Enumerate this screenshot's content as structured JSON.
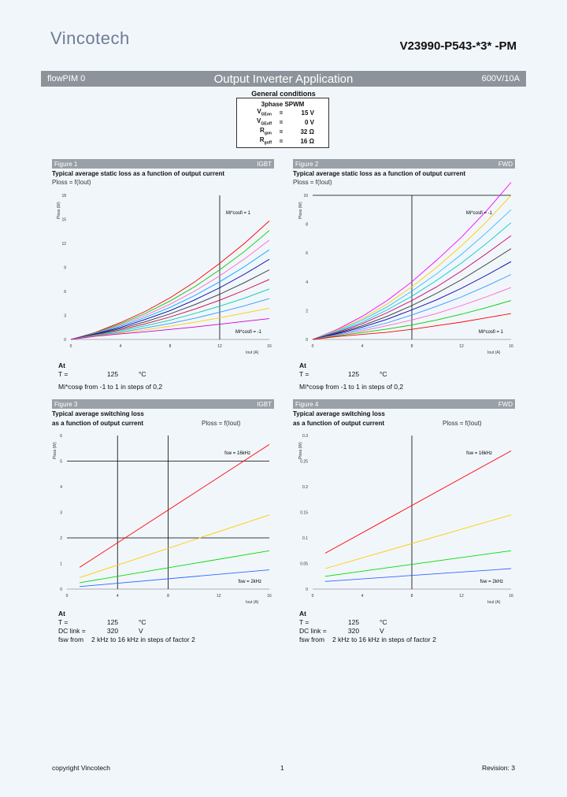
{
  "header": {
    "logo_text": "Vincotech",
    "part_number": "V23990-P543-*3* -PM"
  },
  "titlebar": {
    "left": "flowPIM 0",
    "center": "Output Inverter Application",
    "right": "600V/10A"
  },
  "general_conditions": {
    "title": "General conditions",
    "mode": "3phase SPWM",
    "rows": [
      {
        "name": "V",
        "sub": "GEon",
        "eq": "=",
        "value": "15 V"
      },
      {
        "name": "V",
        "sub": "GEoff",
        "eq": "=",
        "value": "0 V"
      },
      {
        "name": "R",
        "sub": "gon",
        "eq": "=",
        "value": "32 Ω"
      },
      {
        "name": "R",
        "sub": "goff",
        "eq": "=",
        "value": "16 Ω"
      }
    ]
  },
  "figures": [
    {
      "label": "Figure 1",
      "tag": "IGBT",
      "subtitle1": "Typical average static loss as a function of output current",
      "subtitle2": "",
      "formula": "Ploss = f(Iout)",
      "annot_top": "Mi*cosfi = 1",
      "annot_bottom": "Mi*cosfi = -1",
      "ylabel": "Ploss (W)",
      "xlabel": "Iout (A)",
      "cond_title": "At",
      "cond_rows": [
        {
          "a": "T =",
          "b": "125",
          "c": "°C"
        }
      ],
      "cond_note": "Mi*cosφ from -1 to 1 in steps of 0,2"
    },
    {
      "label": "Figure 2",
      "tag": "FWD",
      "subtitle1": "Typical average static loss as a function of output current",
      "subtitle2": "",
      "formula": "Ploss = f(Iout)",
      "annot_top": "Mi*cosfi = -1",
      "annot_bottom": "Mi*cosfi = 1",
      "ylabel": "Ploss (W)",
      "xlabel": "Iout (A)",
      "cond_title": "At",
      "cond_rows": [
        {
          "a": "T =",
          "b": "125",
          "c": "°C"
        }
      ],
      "cond_note": "Mi*cosφ from -1 to 1 in steps of 0,2"
    },
    {
      "label": "Figure 3",
      "tag": "IGBT",
      "subtitle1": "Typical average switching loss",
      "subtitle2": "as a function of output current",
      "formula": "Ploss = f(Iout)",
      "annot_top": "fsw = 16kHz",
      "annot_bottom": "fsw = 2kHz",
      "ylabel": "Ploss (W)",
      "xlabel": "Iout (A)",
      "cond_title": "At",
      "cond_rows": [
        {
          "a": "T =",
          "b": "125",
          "c": "°C"
        },
        {
          "a": "DC link =",
          "b": "320",
          "c": "V"
        },
        {
          "a": "fsw from",
          "b": "2 kHz to 16 kHz in steps of factor 2",
          "c": ""
        }
      ],
      "cond_note": ""
    },
    {
      "label": "Figure 4",
      "tag": "FWD",
      "subtitle1": "Typical average switching loss",
      "subtitle2": "as a function of output current",
      "formula": "Ploss = f(Iout)",
      "annot_top": "fsw = 16kHz",
      "annot_bottom": "fsw = 2kHz",
      "ylabel": "Ploss (W)",
      "xlabel": "Iout (A)",
      "cond_title": "At",
      "cond_rows": [
        {
          "a": "T =",
          "b": "125",
          "c": "°C"
        },
        {
          "a": "DC link =",
          "b": "320",
          "c": "V"
        },
        {
          "a": "fsw from",
          "b": "2 kHz to 16 kHz in steps of factor 2",
          "c": ""
        }
      ],
      "cond_note": ""
    }
  ],
  "chart_data": [
    {
      "type": "line",
      "title": "Figure 1",
      "xlabel": "Iout (A)",
      "ylabel": "Ploss (W)",
      "xlim": [
        0,
        16
      ],
      "ylim": [
        0,
        18
      ],
      "xticks": [
        "0",
        "4",
        "8",
        "12",
        "16"
      ],
      "yticks": [
        "0",
        "3",
        "6",
        "9",
        "12",
        "15",
        "18"
      ],
      "x": [
        0,
        2,
        4,
        6,
        8,
        10,
        12,
        14,
        16
      ],
      "series": [
        {
          "color": "#ff0000",
          "values": [
            0,
            0.9,
            2.1,
            3.5,
            5.2,
            7.2,
            9.5,
            12.0,
            14.8
          ]
        },
        {
          "color": "#00cc00",
          "values": [
            0,
            0.85,
            1.95,
            3.25,
            4.8,
            6.6,
            8.7,
            11.0,
            13.6
          ]
        },
        {
          "color": "#ff66cc",
          "values": [
            0,
            0.8,
            1.8,
            3.0,
            4.4,
            6.05,
            7.95,
            10.05,
            12.4
          ]
        },
        {
          "color": "#00aaff",
          "values": [
            0,
            0.75,
            1.65,
            2.75,
            4.0,
            5.5,
            7.2,
            9.1,
            11.2
          ]
        },
        {
          "color": "#0000aa",
          "values": [
            0,
            0.7,
            1.5,
            2.5,
            3.6,
            4.95,
            6.45,
            8.15,
            10.0
          ]
        },
        {
          "color": "#333333",
          "values": [
            0,
            0.65,
            1.35,
            2.2,
            3.2,
            4.35,
            5.65,
            7.1,
            8.7
          ]
        },
        {
          "color": "#cc0044",
          "values": [
            0,
            0.6,
            1.2,
            1.95,
            2.8,
            3.8,
            4.9,
            6.15,
            7.5
          ]
        },
        {
          "color": "#00ccaa",
          "values": [
            0,
            0.55,
            1.05,
            1.7,
            2.4,
            3.25,
            4.15,
            5.15,
            6.3
          ]
        },
        {
          "color": "#3399ff",
          "values": [
            0,
            0.5,
            0.9,
            1.45,
            2.0,
            2.65,
            3.4,
            4.2,
            5.1
          ]
        },
        {
          "color": "#ffcc00",
          "values": [
            0,
            0.45,
            0.8,
            1.2,
            1.65,
            2.15,
            2.7,
            3.3,
            3.9
          ]
        },
        {
          "color": "#cc00cc",
          "values": [
            0,
            0.4,
            0.7,
            0.95,
            1.25,
            1.55,
            1.9,
            2.25,
            2.6
          ]
        }
      ],
      "markers": {
        "vline": 12,
        "hline": null
      },
      "grid": false
    },
    {
      "type": "line",
      "title": "Figure 2",
      "xlabel": "Iout (A)",
      "ylabel": "Ploss (W)",
      "xlim": [
        0,
        16
      ],
      "ylim": [
        0,
        10
      ],
      "xticks": [
        "0",
        "4",
        "8",
        "12",
        "16"
      ],
      "yticks": [
        "0",
        "2",
        "4",
        "6",
        "8",
        "10"
      ],
      "x": [
        0,
        2,
        4,
        6,
        8,
        10,
        12,
        14,
        16
      ],
      "series": [
        {
          "color": "#ff00ff",
          "values": [
            0,
            0.7,
            1.6,
            2.7,
            4.0,
            5.5,
            7.1,
            8.9,
            10.9
          ]
        },
        {
          "color": "#ffcc00",
          "values": [
            0,
            0.65,
            1.45,
            2.45,
            3.65,
            5.0,
            6.5,
            8.15,
            10.0
          ]
        },
        {
          "color": "#33bbff",
          "values": [
            0,
            0.6,
            1.35,
            2.25,
            3.35,
            4.55,
            5.9,
            7.4,
            9.0
          ]
        },
        {
          "color": "#00cccc",
          "values": [
            0,
            0.55,
            1.2,
            2.05,
            3.0,
            4.1,
            5.3,
            6.65,
            8.1
          ]
        },
        {
          "color": "#cc0066",
          "values": [
            0,
            0.5,
            1.1,
            1.85,
            2.7,
            3.65,
            4.75,
            5.95,
            7.2
          ]
        },
        {
          "color": "#333333",
          "values": [
            0,
            0.45,
            0.95,
            1.6,
            2.35,
            3.2,
            4.15,
            5.2,
            6.3
          ]
        },
        {
          "color": "#0000aa",
          "values": [
            0,
            0.4,
            0.85,
            1.4,
            2.05,
            2.75,
            3.55,
            4.45,
            5.4
          ]
        },
        {
          "color": "#3399ff",
          "values": [
            0,
            0.35,
            0.72,
            1.15,
            1.7,
            2.3,
            2.95,
            3.7,
            4.5
          ]
        },
        {
          "color": "#ff66cc",
          "values": [
            0,
            0.3,
            0.6,
            0.95,
            1.35,
            1.8,
            2.35,
            2.95,
            3.6
          ]
        },
        {
          "color": "#00cc00",
          "values": [
            0,
            0.25,
            0.48,
            0.72,
            1.0,
            1.35,
            1.75,
            2.2,
            2.7
          ]
        },
        {
          "color": "#ff0000",
          "values": [
            0,
            0.2,
            0.35,
            0.5,
            0.7,
            0.95,
            1.2,
            1.5,
            1.8
          ]
        }
      ],
      "markers": {
        "vline": 8,
        "hline": 10
      },
      "grid": false
    },
    {
      "type": "line",
      "title": "Figure 3",
      "xlabel": "Iout (A)",
      "ylabel": "Ploss (W)",
      "xlim": [
        0,
        16
      ],
      "ylim": [
        0,
        6
      ],
      "xticks": [
        "0",
        "4",
        "8",
        "12",
        "16"
      ],
      "yticks": [
        "0",
        "1",
        "2",
        "3",
        "4",
        "5",
        "6"
      ],
      "x": [
        1,
        16
      ],
      "series": [
        {
          "color": "#ff0000",
          "values": [
            0.85,
            5.65
          ]
        },
        {
          "color": "#ffcc00",
          "values": [
            0.45,
            2.9
          ]
        },
        {
          "color": "#00dd00",
          "values": [
            0.25,
            1.5
          ]
        },
        {
          "color": "#3366ff",
          "values": [
            0.1,
            0.75
          ]
        }
      ],
      "markers": {
        "vline": [
          4,
          8
        ],
        "hline": [
          2,
          5
        ]
      },
      "grid": false
    },
    {
      "type": "line",
      "title": "Figure 4",
      "xlabel": "Iout (A)",
      "ylabel": "Ploss (W)",
      "xlim": [
        0,
        16
      ],
      "ylim": [
        0,
        0.3
      ],
      "xticks": [
        "0",
        "4",
        "8",
        "12",
        "16"
      ],
      "yticks": [
        "0",
        "0.05",
        "0.1",
        "0.15",
        "0.2",
        "0.25",
        "0.3"
      ],
      "x": [
        1,
        16
      ],
      "series": [
        {
          "color": "#ff0000",
          "values": [
            0.07,
            0.27
          ]
        },
        {
          "color": "#ffcc00",
          "values": [
            0.04,
            0.145
          ]
        },
        {
          "color": "#00dd00",
          "values": [
            0.025,
            0.075
          ]
        },
        {
          "color": "#3366ff",
          "values": [
            0.015,
            0.04
          ]
        }
      ],
      "markers": {
        "vline": [
          8
        ],
        "hline": []
      },
      "grid": false
    }
  ],
  "footer": {
    "left": "copyright Vincotech",
    "center": "1",
    "right": "Revision: 3"
  }
}
